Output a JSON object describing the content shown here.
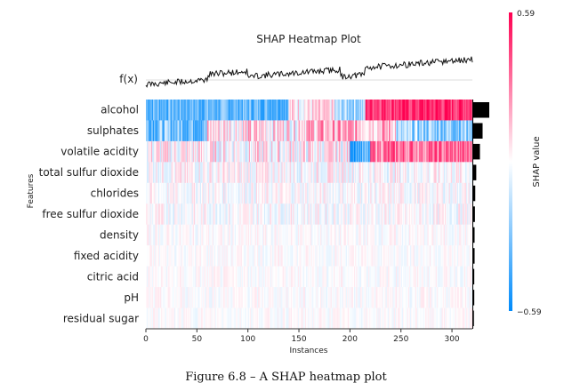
{
  "chart_data": {
    "type": "heatmap",
    "title": "SHAP Heatmap Plot",
    "xlabel": "Instances",
    "ylabel": "Features",
    "fx_label": "f(x)",
    "xlim": [
      0,
      320
    ],
    "x_ticks": [
      0,
      50,
      100,
      150,
      200,
      250,
      300
    ],
    "features": [
      "alcohol",
      "sulphates",
      "volatile acidity",
      "total sulfur dioxide",
      "chlorides",
      "free sulfur dioxide",
      "density",
      "fixed acidity",
      "citric acid",
      "pH",
      "residual sugar"
    ],
    "mean_abs_shap_bars": [
      0.48,
      0.28,
      0.2,
      0.09,
      0.06,
      0.05,
      0.04,
      0.04,
      0.03,
      0.03,
      0.02
    ],
    "colorbar": {
      "label": "SHAP value",
      "max_label": "0.59",
      "min_label": "−0.59",
      "max": 0.59,
      "min": -0.59
    },
    "colors": {
      "positive": "#ff0051",
      "negative": "#008bfb",
      "neutral": "#ffffff"
    }
  },
  "caption": "Figure 6.8 – A SHAP heatmap plot"
}
